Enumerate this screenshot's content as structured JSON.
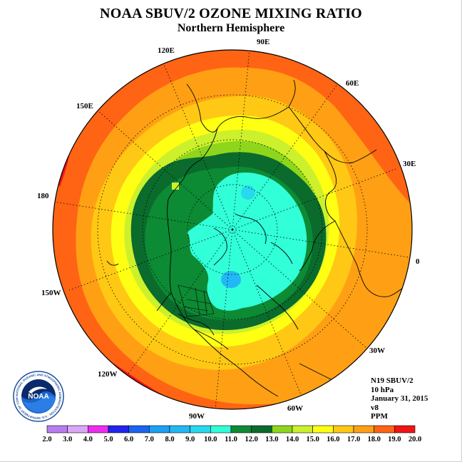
{
  "header": {
    "title": "NOAA SBUV/2 OZONE MIXING RATIO",
    "subtitle": "Northern Hemisphere"
  },
  "map": {
    "projection": "north-polar-stereographic",
    "longitude_labels": [
      "90E",
      "120E",
      "60E",
      "150E",
      "30E",
      "180",
      "0",
      "150W",
      "30W",
      "120W",
      "60W",
      "90W"
    ],
    "graticule": "dotted"
  },
  "info": {
    "instrument": "N19 SBUV/2",
    "level": "10 hPa",
    "date": "January 31, 2015",
    "version": "v8",
    "units": "PPM"
  },
  "logo": {
    "text": "NOAA",
    "ring_text": "NATIONAL OCEANIC AND ATMOSPHERIC ADMINISTRATION · U.S. DEPARTMENT OF COMMERCE"
  },
  "colorbar": {
    "ticks": [
      "2.0",
      "3.0",
      "4.0",
      "5.0",
      "6.0",
      "7.0",
      "8.0",
      "9.0",
      "10.0",
      "11.0",
      "12.0",
      "13.0",
      "14.0",
      "15.0",
      "16.0",
      "17.0",
      "18.0",
      "19.0",
      "20.0"
    ],
    "colors": [
      "#b77df0",
      "#d9a8f5",
      "#ee2cf0",
      "#2323ee",
      "#1a64f0",
      "#1aa0f5",
      "#22b8f5",
      "#26d9ee",
      "#30ffd8",
      "#0d8a34",
      "#0a6b2c",
      "#8ed61c",
      "#ccf02c",
      "#ffff14",
      "#ffc814",
      "#ffa014",
      "#ff6414",
      "#f01414",
      "#8a4a2a"
    ]
  }
}
